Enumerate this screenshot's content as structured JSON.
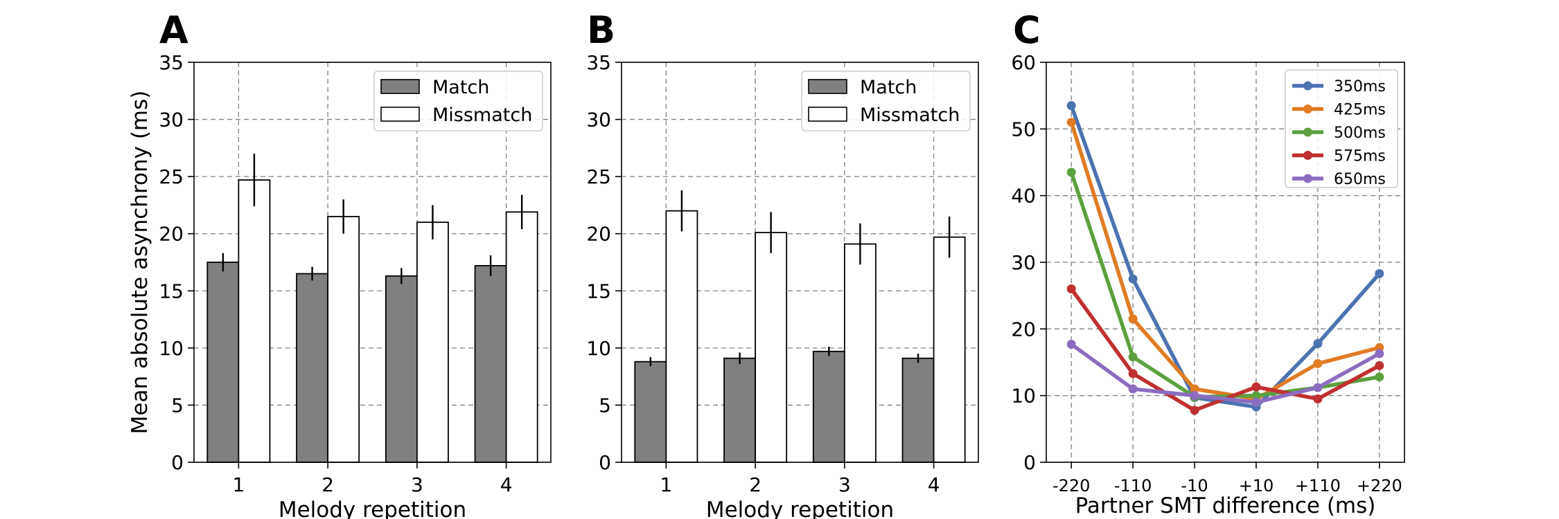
{
  "colors": {
    "match": "#808080",
    "mismatch": "#ffffff",
    "series": [
      "#4c72b0",
      "#e07c24",
      "#5ca040",
      "#c03030",
      "#8c6cc0"
    ]
  },
  "chart_data": [
    {
      "type": "bar",
      "panel": "A",
      "categories": [
        "1",
        "2",
        "3",
        "4"
      ],
      "series": [
        {
          "name": "Match",
          "values": [
            17.5,
            16.5,
            16.3,
            17.2
          ],
          "errors": [
            0.8,
            0.6,
            0.7,
            0.9
          ]
        },
        {
          "name": "Missmatch",
          "values": [
            24.7,
            21.5,
            21.0,
            21.9
          ],
          "errors": [
            2.3,
            1.5,
            1.5,
            1.5
          ]
        }
      ],
      "xlabel": "Melody repetition",
      "ylabel": "Mean absolute asynchrony (ms)",
      "ylim": [
        0,
        35
      ],
      "yticks": [
        0,
        5,
        10,
        15,
        20,
        25,
        30,
        35
      ],
      "grid": true,
      "legend": "top-right"
    },
    {
      "type": "bar",
      "panel": "B",
      "categories": [
        "1",
        "2",
        "3",
        "4"
      ],
      "series": [
        {
          "name": "Match",
          "values": [
            8.8,
            9.1,
            9.7,
            9.1
          ],
          "errors": [
            0.4,
            0.5,
            0.4,
            0.4
          ]
        },
        {
          "name": "Missmatch",
          "values": [
            22.0,
            20.1,
            19.1,
            19.7
          ],
          "errors": [
            1.8,
            1.8,
            1.8,
            1.8
          ]
        }
      ],
      "xlabel": "Melody repetition",
      "ylabel": "",
      "ylim": [
        0,
        35
      ],
      "yticks": [
        0,
        5,
        10,
        15,
        20,
        25,
        30,
        35
      ],
      "grid": true,
      "legend": "top-right"
    },
    {
      "type": "line",
      "panel": "C",
      "categories": [
        "-220",
        "-110",
        "-10",
        "+10",
        "+110",
        "+220"
      ],
      "series": [
        {
          "name": "350ms",
          "values": [
            53.5,
            27.5,
            9.7,
            8.3,
            17.8,
            28.3
          ]
        },
        {
          "name": "425ms",
          "values": [
            51.0,
            21.5,
            11.0,
            9.5,
            14.8,
            17.2
          ]
        },
        {
          "name": "500ms",
          "values": [
            43.5,
            15.8,
            9.8,
            10.0,
            11.2,
            12.8
          ]
        },
        {
          "name": "575ms",
          "values": [
            26.0,
            13.3,
            7.8,
            11.3,
            9.5,
            14.5
          ]
        },
        {
          "name": "650ms",
          "values": [
            17.7,
            11.0,
            10.0,
            9.0,
            11.2,
            16.3
          ]
        }
      ],
      "xlabel": "Partner SMT difference (ms)",
      "ylabel": "",
      "ylim": [
        0,
        60
      ],
      "yticks": [
        0,
        10,
        20,
        30,
        40,
        50,
        60
      ],
      "grid": true,
      "legend": "top-right"
    }
  ]
}
